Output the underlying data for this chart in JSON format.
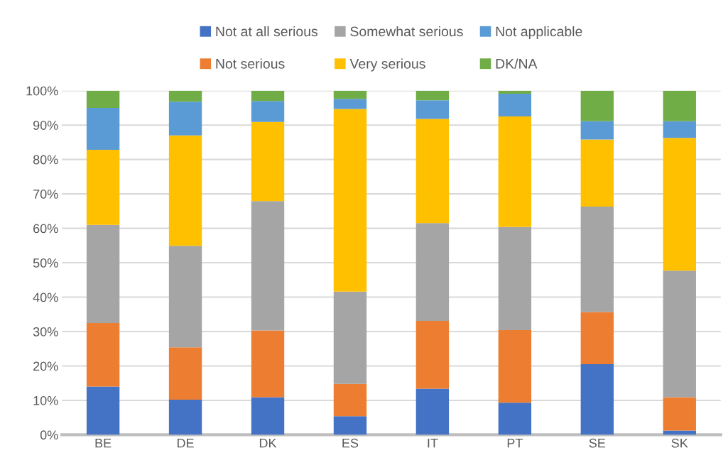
{
  "chart_data": {
    "type": "bar",
    "stacked": true,
    "categories": [
      "BE",
      "DE",
      "DK",
      "ES",
      "IT",
      "PT",
      "SE",
      "SK"
    ],
    "ylim": [
      0,
      100
    ],
    "yticks": [
      {
        "value": 0,
        "label": "0%"
      },
      {
        "value": 10,
        "label": "10%"
      },
      {
        "value": 20,
        "label": "20%"
      },
      {
        "value": 30,
        "label": "30%"
      },
      {
        "value": 40,
        "label": "40%"
      },
      {
        "value": 50,
        "label": "50%"
      },
      {
        "value": 60,
        "label": "60%"
      },
      {
        "value": 70,
        "label": "70%"
      },
      {
        "value": 80,
        "label": "80%"
      },
      {
        "value": 90,
        "label": "90%"
      },
      {
        "value": 100,
        "label": "100%"
      }
    ],
    "grid": "y",
    "legend": "top",
    "series": [
      {
        "name": "Not at all serious",
        "color": "#4472c4",
        "values": [
          14.0,
          10.2,
          10.9,
          5.4,
          13.4,
          9.3,
          20.5,
          1.2
        ]
      },
      {
        "name": "Not serious",
        "color": "#ed7d31",
        "values": [
          18.5,
          15.2,
          19.4,
          9.4,
          19.7,
          21.1,
          15.2,
          9.7
        ]
      },
      {
        "name": "Somewhat serious",
        "color": "#a5a5a5",
        "values": [
          28.5,
          29.5,
          37.6,
          26.8,
          28.4,
          30.0,
          30.6,
          36.8
        ]
      },
      {
        "name": "Very serious",
        "color": "#ffc000",
        "values": [
          21.8,
          32.1,
          23.0,
          53.1,
          30.3,
          32.1,
          19.5,
          38.6
        ]
      },
      {
        "name": "Not applicable",
        "color": "#5b9bd5",
        "values": [
          12.2,
          9.8,
          6.1,
          2.9,
          5.4,
          6.6,
          5.3,
          4.8
        ]
      },
      {
        "name": "DK/NA",
        "color": "#70ad47",
        "values": [
          5.0,
          3.2,
          3.0,
          2.4,
          2.8,
          0.9,
          8.9,
          8.9
        ]
      }
    ]
  }
}
